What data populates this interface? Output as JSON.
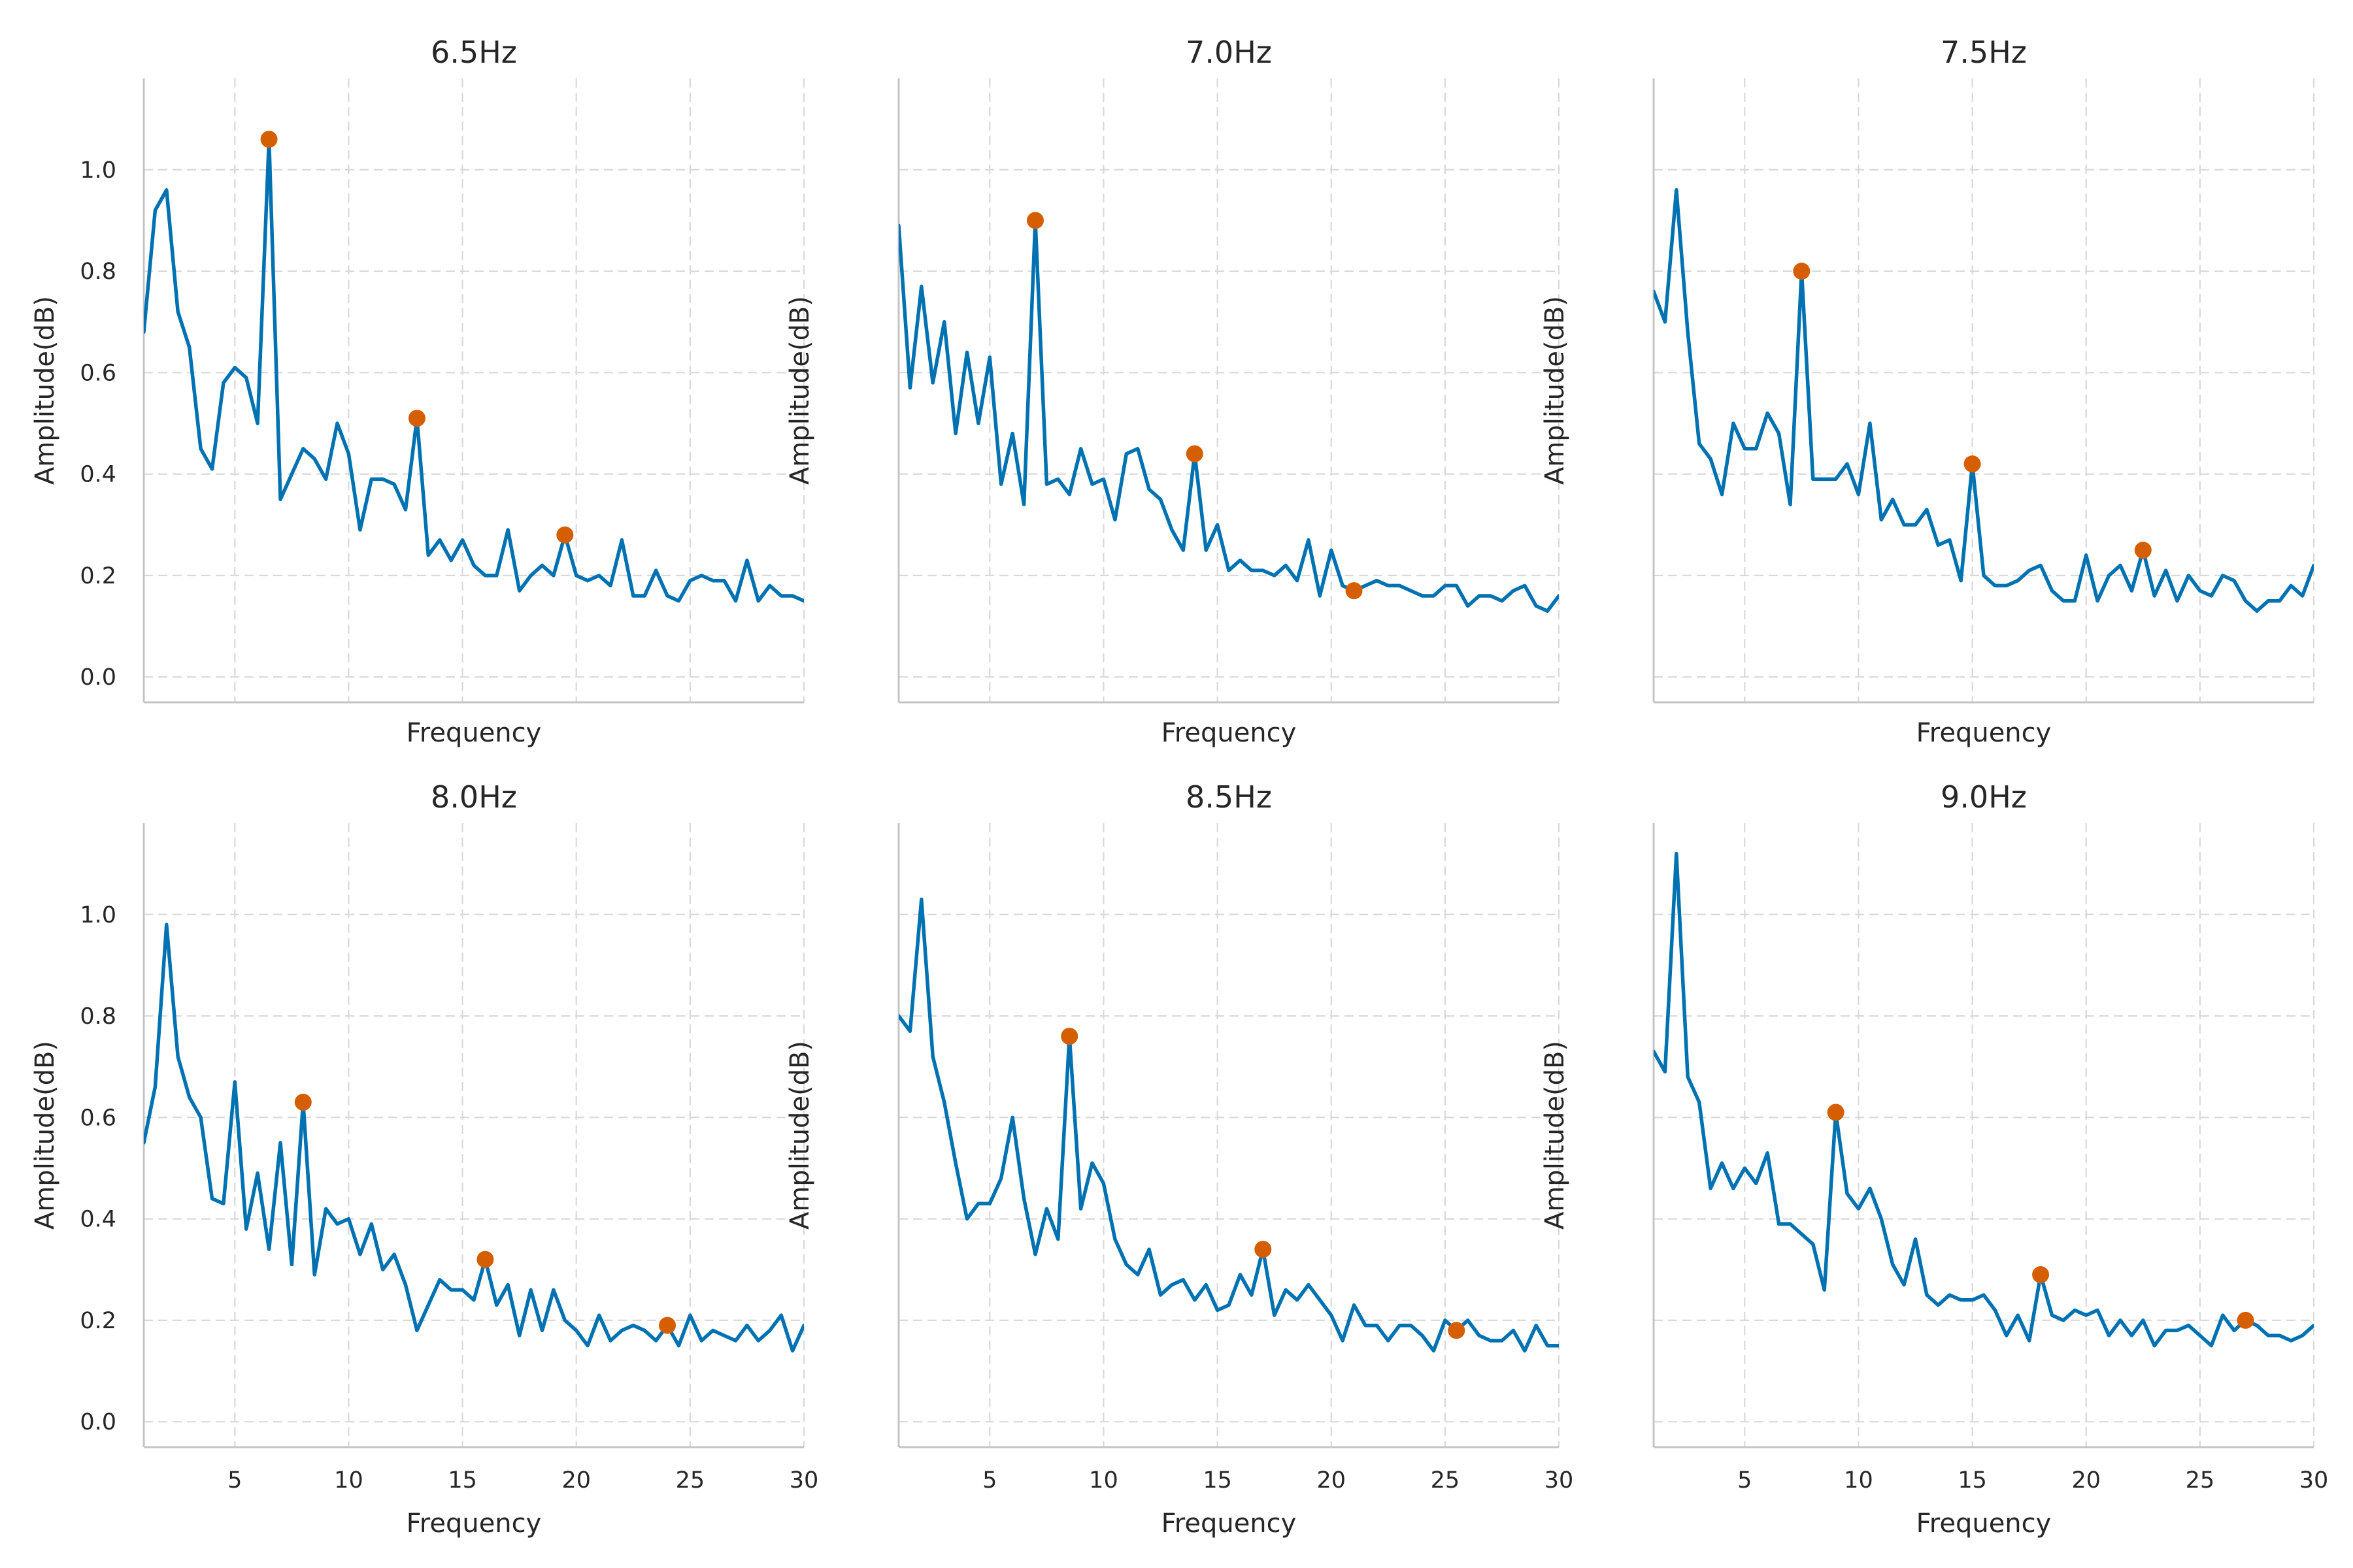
{
  "chart_data": [
    {
      "type": "line",
      "title": "6.5Hz",
      "xlabel": "Frequency",
      "ylabel": "Amplitude(dB)",
      "xlim": [
        1,
        30
      ],
      "ylim": [
        -0.05,
        1.18
      ],
      "yticks": [
        0.0,
        0.2,
        0.4,
        0.6,
        0.8,
        1.0
      ],
      "xticks": [
        5,
        10,
        15,
        20,
        25,
        30
      ],
      "show_xtick_labels": false,
      "show_ytick_labels": true,
      "grid": true,
      "x": [
        1.0,
        1.5,
        2.0,
        2.5,
        3.0,
        3.5,
        4.0,
        4.5,
        5.0,
        5.5,
        6.0,
        6.5,
        7.0,
        7.5,
        8.0,
        8.5,
        9.0,
        9.5,
        10.0,
        10.5,
        11.0,
        11.5,
        12.0,
        12.5,
        13.0,
        13.5,
        14.0,
        14.5,
        15.0,
        15.5,
        16.0,
        16.5,
        17.0,
        17.5,
        18.0,
        18.5,
        19.0,
        19.5,
        20.0,
        20.5,
        21.0,
        21.5,
        22.0,
        22.5,
        23.0,
        23.5,
        24.0,
        24.5,
        25.0,
        25.5,
        26.0,
        26.5,
        27.0,
        27.5,
        28.0,
        28.5,
        29.0,
        29.5,
        30.0
      ],
      "series": [
        {
          "values": [
            0.68,
            0.92,
            0.96,
            0.72,
            0.65,
            0.45,
            0.41,
            0.58,
            0.61,
            0.59,
            0.5,
            1.06,
            0.35,
            0.4,
            0.45,
            0.43,
            0.39,
            0.5,
            0.44,
            0.29,
            0.39,
            0.39,
            0.38,
            0.33,
            0.51,
            0.24,
            0.27,
            0.23,
            0.27,
            0.22,
            0.2,
            0.2,
            0.29,
            0.17,
            0.2,
            0.22,
            0.2,
            0.28,
            0.2,
            0.19,
            0.2,
            0.18,
            0.27,
            0.16,
            0.16,
            0.21,
            0.16,
            0.15,
            0.19,
            0.2,
            0.19,
            0.19,
            0.15,
            0.23,
            0.15,
            0.18,
            0.16,
            0.16,
            0.15
          ]
        }
      ],
      "peaks": {
        "x": [
          6.5,
          13.0,
          19.5
        ],
        "y": [
          1.06,
          0.51,
          0.28
        ]
      }
    },
    {
      "type": "line",
      "title": "7.0Hz",
      "xlabel": "Frequency",
      "ylabel": "Amplitude(dB)",
      "xlim": [
        1,
        30
      ],
      "ylim": [
        -0.05,
        1.18
      ],
      "yticks": [
        0.0,
        0.2,
        0.4,
        0.6,
        0.8,
        1.0
      ],
      "xticks": [
        5,
        10,
        15,
        20,
        25,
        30
      ],
      "show_xtick_labels": false,
      "show_ytick_labels": false,
      "grid": true,
      "x": [
        1.0,
        1.5,
        2.0,
        2.5,
        3.0,
        3.5,
        4.0,
        4.5,
        5.0,
        5.5,
        6.0,
        6.5,
        7.0,
        7.5,
        8.0,
        8.5,
        9.0,
        9.5,
        10.0,
        10.5,
        11.0,
        11.5,
        12.0,
        12.5,
        13.0,
        13.5,
        14.0,
        14.5,
        15.0,
        15.5,
        16.0,
        16.5,
        17.0,
        17.5,
        18.0,
        18.5,
        19.0,
        19.5,
        20.0,
        20.5,
        21.0,
        21.5,
        22.0,
        22.5,
        23.0,
        23.5,
        24.0,
        24.5,
        25.0,
        25.5,
        26.0,
        26.5,
        27.0,
        27.5,
        28.0,
        28.5,
        29.0,
        29.5,
        30.0
      ],
      "series": [
        {
          "values": [
            0.89,
            0.57,
            0.77,
            0.58,
            0.7,
            0.48,
            0.64,
            0.5,
            0.63,
            0.38,
            0.48,
            0.34,
            0.9,
            0.38,
            0.39,
            0.36,
            0.45,
            0.38,
            0.39,
            0.31,
            0.44,
            0.45,
            0.37,
            0.35,
            0.29,
            0.25,
            0.44,
            0.25,
            0.3,
            0.21,
            0.23,
            0.21,
            0.21,
            0.2,
            0.22,
            0.19,
            0.27,
            0.16,
            0.25,
            0.18,
            0.17,
            0.18,
            0.19,
            0.18,
            0.18,
            0.17,
            0.16,
            0.16,
            0.18,
            0.18,
            0.14,
            0.16,
            0.16,
            0.15,
            0.17,
            0.18,
            0.14,
            0.13,
            0.16
          ]
        }
      ],
      "peaks": {
        "x": [
          7.0,
          14.0,
          21.0
        ],
        "y": [
          0.9,
          0.44,
          0.17
        ]
      }
    },
    {
      "type": "line",
      "title": "7.5Hz",
      "xlabel": "Frequency",
      "ylabel": "Amplitude(dB)",
      "xlim": [
        1,
        30
      ],
      "ylim": [
        -0.05,
        1.18
      ],
      "yticks": [
        0.0,
        0.2,
        0.4,
        0.6,
        0.8,
        1.0
      ],
      "xticks": [
        5,
        10,
        15,
        20,
        25,
        30
      ],
      "show_xtick_labels": false,
      "show_ytick_labels": false,
      "grid": true,
      "x": [
        1.0,
        1.5,
        2.0,
        2.5,
        3.0,
        3.5,
        4.0,
        4.5,
        5.0,
        5.5,
        6.0,
        6.5,
        7.0,
        7.5,
        8.0,
        8.5,
        9.0,
        9.5,
        10.0,
        10.5,
        11.0,
        11.5,
        12.0,
        12.5,
        13.0,
        13.5,
        14.0,
        14.5,
        15.0,
        15.5,
        16.0,
        16.5,
        17.0,
        17.5,
        18.0,
        18.5,
        19.0,
        19.5,
        20.0,
        20.5,
        21.0,
        21.5,
        22.0,
        22.5,
        23.0,
        23.5,
        24.0,
        24.5,
        25.0,
        25.5,
        26.0,
        26.5,
        27.0,
        27.5,
        28.0,
        28.5,
        29.0,
        29.5,
        30.0
      ],
      "series": [
        {
          "values": [
            0.76,
            0.7,
            0.96,
            0.68,
            0.46,
            0.43,
            0.36,
            0.5,
            0.45,
            0.45,
            0.52,
            0.48,
            0.34,
            0.8,
            0.39,
            0.39,
            0.39,
            0.42,
            0.36,
            0.5,
            0.31,
            0.35,
            0.3,
            0.3,
            0.33,
            0.26,
            0.27,
            0.19,
            0.42,
            0.2,
            0.18,
            0.18,
            0.19,
            0.21,
            0.22,
            0.17,
            0.15,
            0.15,
            0.24,
            0.15,
            0.2,
            0.22,
            0.17,
            0.25,
            0.16,
            0.21,
            0.15,
            0.2,
            0.17,
            0.16,
            0.2,
            0.19,
            0.15,
            0.13,
            0.15,
            0.15,
            0.18,
            0.16,
            0.22
          ]
        }
      ],
      "peaks": {
        "x": [
          7.5,
          15.0,
          22.5
        ],
        "y": [
          0.8,
          0.42,
          0.25
        ]
      }
    },
    {
      "type": "line",
      "title": "8.0Hz",
      "xlabel": "Frequency",
      "ylabel": "Amplitude(dB)",
      "xlim": [
        1,
        30
      ],
      "ylim": [
        -0.05,
        1.18
      ],
      "yticks": [
        0.0,
        0.2,
        0.4,
        0.6,
        0.8,
        1.0
      ],
      "xticks": [
        5,
        10,
        15,
        20,
        25,
        30
      ],
      "show_xtick_labels": true,
      "show_ytick_labels": true,
      "grid": true,
      "x": [
        1.0,
        1.5,
        2.0,
        2.5,
        3.0,
        3.5,
        4.0,
        4.5,
        5.0,
        5.5,
        6.0,
        6.5,
        7.0,
        7.5,
        8.0,
        8.5,
        9.0,
        9.5,
        10.0,
        10.5,
        11.0,
        11.5,
        12.0,
        12.5,
        13.0,
        13.5,
        14.0,
        14.5,
        15.0,
        15.5,
        16.0,
        16.5,
        17.0,
        17.5,
        18.0,
        18.5,
        19.0,
        19.5,
        20.0,
        20.5,
        21.0,
        21.5,
        22.0,
        22.5,
        23.0,
        23.5,
        24.0,
        24.5,
        25.0,
        25.5,
        26.0,
        26.5,
        27.0,
        27.5,
        28.0,
        28.5,
        29.0,
        29.5,
        30.0
      ],
      "series": [
        {
          "values": [
            0.55,
            0.66,
            0.98,
            0.72,
            0.64,
            0.6,
            0.44,
            0.43,
            0.67,
            0.38,
            0.49,
            0.34,
            0.55,
            0.31,
            0.63,
            0.29,
            0.42,
            0.39,
            0.4,
            0.33,
            0.39,
            0.3,
            0.33,
            0.27,
            0.18,
            0.23,
            0.28,
            0.26,
            0.26,
            0.24,
            0.32,
            0.23,
            0.27,
            0.17,
            0.26,
            0.18,
            0.26,
            0.2,
            0.18,
            0.15,
            0.21,
            0.16,
            0.18,
            0.19,
            0.18,
            0.16,
            0.19,
            0.15,
            0.21,
            0.16,
            0.18,
            0.17,
            0.16,
            0.19,
            0.16,
            0.18,
            0.21,
            0.14,
            0.19
          ]
        }
      ],
      "peaks": {
        "x": [
          8.0,
          16.0,
          24.0
        ],
        "y": [
          0.63,
          0.32,
          0.19
        ]
      }
    },
    {
      "type": "line",
      "title": "8.5Hz",
      "xlabel": "Frequency",
      "ylabel": "Amplitude(dB)",
      "xlim": [
        1,
        30
      ],
      "ylim": [
        -0.05,
        1.18
      ],
      "yticks": [
        0.0,
        0.2,
        0.4,
        0.6,
        0.8,
        1.0
      ],
      "xticks": [
        5,
        10,
        15,
        20,
        25,
        30
      ],
      "show_xtick_labels": true,
      "show_ytick_labels": false,
      "grid": true,
      "x": [
        1.0,
        1.5,
        2.0,
        2.5,
        3.0,
        3.5,
        4.0,
        4.5,
        5.0,
        5.5,
        6.0,
        6.5,
        7.0,
        7.5,
        8.0,
        8.5,
        9.0,
        9.5,
        10.0,
        10.5,
        11.0,
        11.5,
        12.0,
        12.5,
        13.0,
        13.5,
        14.0,
        14.5,
        15.0,
        15.5,
        16.0,
        16.5,
        17.0,
        17.5,
        18.0,
        18.5,
        19.0,
        19.5,
        20.0,
        20.5,
        21.0,
        21.5,
        22.0,
        22.5,
        23.0,
        23.5,
        24.0,
        24.5,
        25.0,
        25.5,
        26.0,
        26.5,
        27.0,
        27.5,
        28.0,
        28.5,
        29.0,
        29.5,
        30.0
      ],
      "series": [
        {
          "values": [
            0.8,
            0.77,
            1.03,
            0.72,
            0.63,
            0.51,
            0.4,
            0.43,
            0.43,
            0.48,
            0.6,
            0.44,
            0.33,
            0.42,
            0.36,
            0.76,
            0.42,
            0.51,
            0.47,
            0.36,
            0.31,
            0.29,
            0.34,
            0.25,
            0.27,
            0.28,
            0.24,
            0.27,
            0.22,
            0.23,
            0.29,
            0.25,
            0.34,
            0.21,
            0.26,
            0.24,
            0.27,
            0.24,
            0.21,
            0.16,
            0.23,
            0.19,
            0.19,
            0.16,
            0.19,
            0.19,
            0.17,
            0.14,
            0.2,
            0.18,
            0.2,
            0.17,
            0.16,
            0.16,
            0.18,
            0.14,
            0.19,
            0.15,
            0.15
          ]
        }
      ],
      "peaks": {
        "x": [
          8.5,
          17.0,
          25.5
        ],
        "y": [
          0.76,
          0.34,
          0.18
        ]
      }
    },
    {
      "type": "line",
      "title": "9.0Hz",
      "xlabel": "Frequency",
      "ylabel": "Amplitude(dB)",
      "xlim": [
        1,
        30
      ],
      "ylim": [
        -0.05,
        1.18
      ],
      "yticks": [
        0.0,
        0.2,
        0.4,
        0.6,
        0.8,
        1.0
      ],
      "xticks": [
        5,
        10,
        15,
        20,
        25,
        30
      ],
      "show_xtick_labels": true,
      "show_ytick_labels": false,
      "grid": true,
      "x": [
        1.0,
        1.5,
        2.0,
        2.5,
        3.0,
        3.5,
        4.0,
        4.5,
        5.0,
        5.5,
        6.0,
        6.5,
        7.0,
        7.5,
        8.0,
        8.5,
        9.0,
        9.5,
        10.0,
        10.5,
        11.0,
        11.5,
        12.0,
        12.5,
        13.0,
        13.5,
        14.0,
        14.5,
        15.0,
        15.5,
        16.0,
        16.5,
        17.0,
        17.5,
        18.0,
        18.5,
        19.0,
        19.5,
        20.0,
        20.5,
        21.0,
        21.5,
        22.0,
        22.5,
        23.0,
        23.5,
        24.0,
        24.5,
        25.0,
        25.5,
        26.0,
        26.5,
        27.0,
        27.5,
        28.0,
        28.5,
        29.0,
        29.5,
        30.0
      ],
      "series": [
        {
          "values": [
            0.73,
            0.69,
            1.12,
            0.68,
            0.63,
            0.46,
            0.51,
            0.46,
            0.5,
            0.47,
            0.53,
            0.39,
            0.39,
            0.37,
            0.35,
            0.26,
            0.61,
            0.45,
            0.42,
            0.46,
            0.4,
            0.31,
            0.27,
            0.36,
            0.25,
            0.23,
            0.25,
            0.24,
            0.24,
            0.25,
            0.22,
            0.17,
            0.21,
            0.16,
            0.29,
            0.21,
            0.2,
            0.22,
            0.21,
            0.22,
            0.17,
            0.2,
            0.17,
            0.2,
            0.15,
            0.18,
            0.18,
            0.19,
            0.17,
            0.15,
            0.21,
            0.18,
            0.2,
            0.19,
            0.17,
            0.17,
            0.16,
            0.17,
            0.19
          ]
        }
      ],
      "peaks": {
        "x": [
          9.0,
          18.0,
          27.0
        ],
        "y": [
          0.61,
          0.29,
          0.2
        ]
      }
    }
  ],
  "colors": {
    "line": "#0072B2",
    "peak": "#D55E00",
    "text": "#262626"
  }
}
